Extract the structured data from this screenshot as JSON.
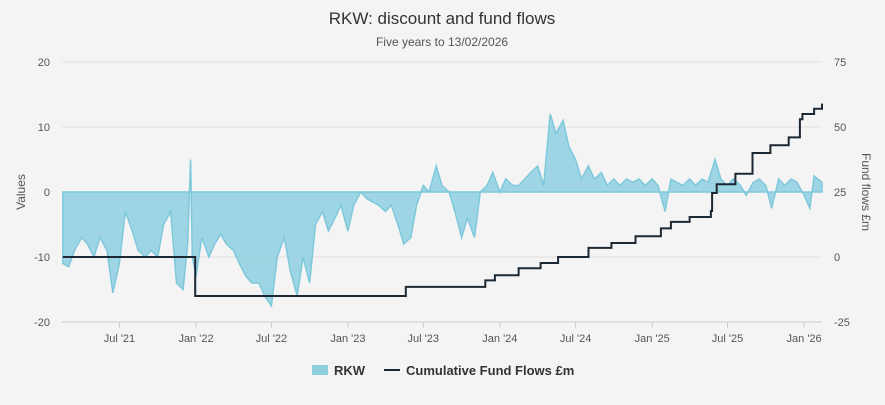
{
  "chart_data": {
    "type": "area+line",
    "title": "RKW: discount and fund flows",
    "subtitle": "Five years to 13/02/2026",
    "ylabel_left": "Values",
    "ylabel_right": "Fund flows £m",
    "ylim_left": [
      -20,
      20
    ],
    "ylim_right": [
      -25,
      75
    ],
    "yticks_left": [
      "20",
      "10",
      "0",
      "-10",
      "-20"
    ],
    "yticks_right": [
      "75",
      "50",
      "25",
      "0",
      "-25"
    ],
    "xlim": [
      "2021-02-13",
      "2026-02-13"
    ],
    "xticks": [
      {
        "date": "2021-07-01",
        "label": "Jul '21"
      },
      {
        "date": "2022-01-01",
        "label": "Jan '22"
      },
      {
        "date": "2022-07-01",
        "label": "Jul '22"
      },
      {
        "date": "2023-01-01",
        "label": "Jan '23"
      },
      {
        "date": "2023-07-01",
        "label": "Jul '23"
      },
      {
        "date": "2024-01-01",
        "label": "Jan '24"
      },
      {
        "date": "2024-07-01",
        "label": "Jul '24"
      },
      {
        "date": "2025-01-01",
        "label": "Jan '25"
      },
      {
        "date": "2025-07-01",
        "label": "Jul '25"
      },
      {
        "date": "2026-01-01",
        "label": "Jan '26"
      }
    ],
    "grid": true,
    "legend_position": "bottom",
    "series": [
      {
        "name": "RKW",
        "axis": "left",
        "type": "area",
        "color": "#8ecfe0",
        "points": [
          [
            "2021-02-15",
            -11
          ],
          [
            "2021-03-01",
            -11.5
          ],
          [
            "2021-03-15",
            -9
          ],
          [
            "2021-04-01",
            -7
          ],
          [
            "2021-04-15",
            -8
          ],
          [
            "2021-05-01",
            -10
          ],
          [
            "2021-05-15",
            -7
          ],
          [
            "2021-06-01",
            -9
          ],
          [
            "2021-06-15",
            -15.5
          ],
          [
            "2021-07-01",
            -11
          ],
          [
            "2021-07-15",
            -3
          ],
          [
            "2021-08-01",
            -6
          ],
          [
            "2021-08-15",
            -9
          ],
          [
            "2021-09-01",
            -10
          ],
          [
            "2021-09-15",
            -9
          ],
          [
            "2021-10-01",
            -10
          ],
          [
            "2021-10-15",
            -5
          ],
          [
            "2021-11-01",
            -3
          ],
          [
            "2021-11-15",
            -14
          ],
          [
            "2021-12-01",
            -15
          ],
          [
            "2021-12-12",
            -8
          ],
          [
            "2021-12-19",
            5
          ],
          [
            "2021-12-23",
            -10
          ],
          [
            "2022-01-01",
            -13
          ],
          [
            "2022-01-15",
            -7
          ],
          [
            "2022-02-01",
            -10
          ],
          [
            "2022-02-15",
            -8
          ],
          [
            "2022-03-01",
            -6.5
          ],
          [
            "2022-03-15",
            -8
          ],
          [
            "2022-04-01",
            -9
          ],
          [
            "2022-04-15",
            -11
          ],
          [
            "2022-05-01",
            -13
          ],
          [
            "2022-05-15",
            -14
          ],
          [
            "2022-06-01",
            -14
          ],
          [
            "2022-06-15",
            -16
          ],
          [
            "2022-07-01",
            -17.5
          ],
          [
            "2022-07-15",
            -10
          ],
          [
            "2022-08-01",
            -7
          ],
          [
            "2022-08-15",
            -12
          ],
          [
            "2022-09-01",
            -16
          ],
          [
            "2022-09-15",
            -10
          ],
          [
            "2022-10-01",
            -14
          ],
          [
            "2022-10-15",
            -5
          ],
          [
            "2022-11-01",
            -3
          ],
          [
            "2022-11-15",
            -6
          ],
          [
            "2022-12-01",
            -4
          ],
          [
            "2022-12-15",
            -2
          ],
          [
            "2023-01-01",
            -6
          ],
          [
            "2023-01-15",
            -2
          ],
          [
            "2023-02-01",
            0
          ],
          [
            "2023-02-15",
            -1
          ],
          [
            "2023-03-01",
            -1.5
          ],
          [
            "2023-03-15",
            -2
          ],
          [
            "2023-04-01",
            -3
          ],
          [
            "2023-04-15",
            -2
          ],
          [
            "2023-05-01",
            -5
          ],
          [
            "2023-05-15",
            -8
          ],
          [
            "2023-06-01",
            -7
          ],
          [
            "2023-06-15",
            -2
          ],
          [
            "2023-07-01",
            1
          ],
          [
            "2023-07-15",
            0
          ],
          [
            "2023-08-01",
            4
          ],
          [
            "2023-08-15",
            1
          ],
          [
            "2023-09-01",
            0
          ],
          [
            "2023-09-15",
            -3
          ],
          [
            "2023-10-01",
            -7
          ],
          [
            "2023-10-15",
            -4
          ],
          [
            "2023-11-01",
            -7
          ],
          [
            "2023-11-15",
            0
          ],
          [
            "2023-12-01",
            1
          ],
          [
            "2023-12-15",
            3
          ],
          [
            "2024-01-01",
            0
          ],
          [
            "2024-01-15",
            2
          ],
          [
            "2024-02-01",
            1
          ],
          [
            "2024-02-15",
            1
          ],
          [
            "2024-03-01",
            2
          ],
          [
            "2024-03-15",
            3
          ],
          [
            "2024-04-01",
            4
          ],
          [
            "2024-04-15",
            1
          ],
          [
            "2024-05-01",
            12
          ],
          [
            "2024-05-15",
            9
          ],
          [
            "2024-06-01",
            11
          ],
          [
            "2024-06-15",
            7
          ],
          [
            "2024-07-01",
            5
          ],
          [
            "2024-07-15",
            2
          ],
          [
            "2024-08-01",
            4
          ],
          [
            "2024-08-15",
            2
          ],
          [
            "2024-09-01",
            3
          ],
          [
            "2024-09-15",
            1
          ],
          [
            "2024-10-01",
            2
          ],
          [
            "2024-10-15",
            1
          ],
          [
            "2024-11-01",
            2
          ],
          [
            "2024-11-15",
            1.5
          ],
          [
            "2024-12-01",
            2
          ],
          [
            "2024-12-15",
            1
          ],
          [
            "2025-01-01",
            2
          ],
          [
            "2025-01-15",
            1
          ],
          [
            "2025-02-01",
            -3
          ],
          [
            "2025-02-15",
            2
          ],
          [
            "2025-03-01",
            1.5
          ],
          [
            "2025-03-15",
            1
          ],
          [
            "2025-04-01",
            2
          ],
          [
            "2025-04-15",
            1
          ],
          [
            "2025-05-01",
            2
          ],
          [
            "2025-05-15",
            1.5
          ],
          [
            "2025-06-01",
            5
          ],
          [
            "2025-06-15",
            2
          ],
          [
            "2025-07-01",
            1
          ],
          [
            "2025-07-15",
            2
          ],
          [
            "2025-08-01",
            1
          ],
          [
            "2025-08-15",
            -0.5
          ],
          [
            "2025-09-01",
            1.5
          ],
          [
            "2025-09-15",
            2
          ],
          [
            "2025-10-01",
            1
          ],
          [
            "2025-10-15",
            -2.5
          ],
          [
            "2025-11-01",
            2
          ],
          [
            "2025-11-15",
            1
          ],
          [
            "2025-12-01",
            2
          ],
          [
            "2025-12-15",
            1.5
          ],
          [
            "2026-01-01",
            -0.5
          ],
          [
            "2026-01-15",
            -2.5
          ],
          [
            "2026-01-25",
            2.5
          ],
          [
            "2026-02-13",
            1.5
          ]
        ]
      },
      {
        "name": "Cumulative Fund Flows £m",
        "axis": "right",
        "type": "step-line",
        "color": "#1c2833",
        "points": [
          [
            "2021-02-15",
            0
          ],
          [
            "2021-12-30",
            -15
          ],
          [
            "2023-05-20",
            -11.5
          ],
          [
            "2023-11-27",
            -9
          ],
          [
            "2023-12-20",
            -7
          ],
          [
            "2024-02-15",
            -4.3
          ],
          [
            "2024-04-08",
            -2.3
          ],
          [
            "2024-05-20",
            0
          ],
          [
            "2024-08-01",
            3.5
          ],
          [
            "2024-09-25",
            5.4
          ],
          [
            "2024-11-22",
            8
          ],
          [
            "2025-01-22",
            11
          ],
          [
            "2025-02-15",
            13.5
          ],
          [
            "2025-04-01",
            15.4
          ],
          [
            "2025-05-22",
            17.7
          ],
          [
            "2025-05-25",
            24.6
          ],
          [
            "2025-06-05",
            28
          ],
          [
            "2025-07-20",
            32
          ],
          [
            "2025-08-30",
            40
          ],
          [
            "2025-10-12",
            43
          ],
          [
            "2025-11-25",
            46
          ],
          [
            "2025-12-22",
            53
          ],
          [
            "2025-12-28",
            55
          ],
          [
            "2026-01-25",
            57
          ],
          [
            "2026-02-13",
            59
          ]
        ]
      }
    ]
  }
}
